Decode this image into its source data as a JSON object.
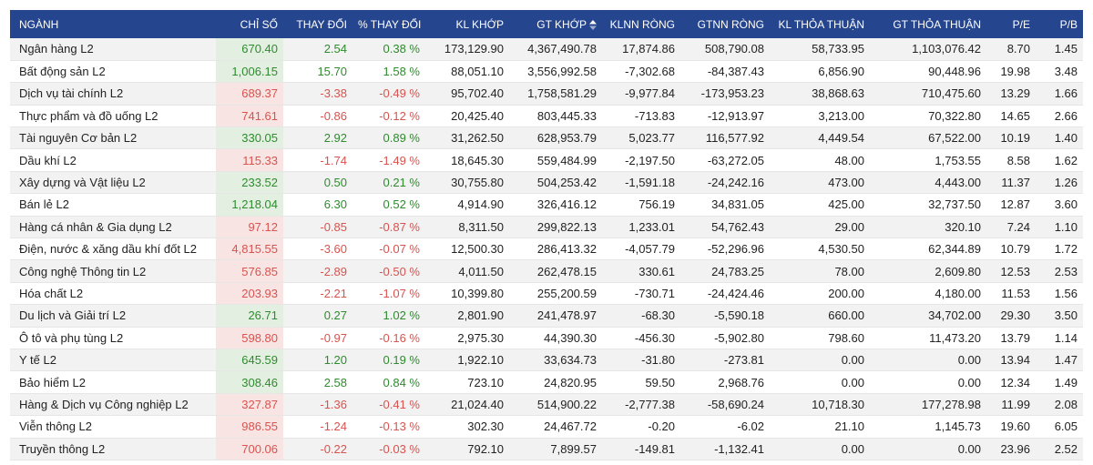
{
  "colors": {
    "header_bg": "#26458f",
    "up": "#2e8b2e",
    "down": "#d9534f",
    "up_bg": "#e3f0e1",
    "down_bg": "#f7e4e3"
  },
  "columns": [
    "NGÀNH",
    "CHỈ SỐ",
    "THAY ĐỔI",
    "% THAY ĐỔI",
    "KL KHỚP",
    "GT KHỚP",
    "KLNN RÒNG",
    "GTNN RÒNG",
    "KL THỎA THUẬN",
    "GT THỎA THUẬN",
    "P/E",
    "P/B"
  ],
  "sorted_column_icon": "sort-updown-icon",
  "rows": [
    {
      "name": "Ngân hàng L2",
      "index": "670.40",
      "change": "2.54",
      "pct": "0.38 %",
      "vol": "173,129.90",
      "val": "4,367,490.78",
      "fvol": "17,874.86",
      "fval": "508,790.08",
      "pvol": "58,733.95",
      "pval": "1,103,076.42",
      "pe": "8.70",
      "pb": "1.45",
      "dir": "up"
    },
    {
      "name": "Bất động sản L2",
      "index": "1,006.15",
      "change": "15.70",
      "pct": "1.58 %",
      "vol": "88,051.10",
      "val": "3,556,992.58",
      "fvol": "-7,302.68",
      "fval": "-84,387.43",
      "pvol": "6,856.90",
      "pval": "90,448.96",
      "pe": "19.98",
      "pb": "3.48",
      "dir": "up"
    },
    {
      "name": "Dịch vụ tài chính L2",
      "index": "689.37",
      "change": "-3.38",
      "pct": "-0.49 %",
      "vol": "95,702.40",
      "val": "1,758,581.29",
      "fvol": "-9,977.84",
      "fval": "-173,953.23",
      "pvol": "38,868.63",
      "pval": "710,475.60",
      "pe": "13.29",
      "pb": "1.66",
      "dir": "down"
    },
    {
      "name": "Thực phẩm và đồ uống L2",
      "index": "741.61",
      "change": "-0.86",
      "pct": "-0.12 %",
      "vol": "20,425.40",
      "val": "803,445.33",
      "fvol": "-713.83",
      "fval": "-12,913.97",
      "pvol": "3,213.00",
      "pval": "70,322.80",
      "pe": "14.65",
      "pb": "2.66",
      "dir": "down"
    },
    {
      "name": "Tài nguyên Cơ bản L2",
      "index": "330.05",
      "change": "2.92",
      "pct": "0.89 %",
      "vol": "31,262.50",
      "val": "628,953.79",
      "fvol": "5,023.77",
      "fval": "116,577.92",
      "pvol": "4,449.54",
      "pval": "67,522.00",
      "pe": "10.19",
      "pb": "1.40",
      "dir": "up"
    },
    {
      "name": "Dầu khí L2",
      "index": "115.33",
      "change": "-1.74",
      "pct": "-1.49 %",
      "vol": "18,645.30",
      "val": "559,484.99",
      "fvol": "-2,197.50",
      "fval": "-63,272.05",
      "pvol": "48.00",
      "pval": "1,753.55",
      "pe": "8.58",
      "pb": "1.62",
      "dir": "down"
    },
    {
      "name": "Xây dựng và Vật liệu L2",
      "index": "233.52",
      "change": "0.50",
      "pct": "0.21 %",
      "vol": "30,755.80",
      "val": "504,253.42",
      "fvol": "-1,591.18",
      "fval": "-24,242.16",
      "pvol": "473.00",
      "pval": "4,443.00",
      "pe": "11.37",
      "pb": "1.26",
      "dir": "up"
    },
    {
      "name": "Bán lẻ L2",
      "index": "1,218.04",
      "change": "6.30",
      "pct": "0.52 %",
      "vol": "4,914.90",
      "val": "326,416.12",
      "fvol": "756.19",
      "fval": "34,831.05",
      "pvol": "425.00",
      "pval": "32,737.50",
      "pe": "12.87",
      "pb": "3.60",
      "dir": "up"
    },
    {
      "name": "Hàng cá nhân & Gia dụng L2",
      "index": "97.12",
      "change": "-0.85",
      "pct": "-0.87 %",
      "vol": "8,311.50",
      "val": "299,822.13",
      "fvol": "1,233.01",
      "fval": "54,762.43",
      "pvol": "29.00",
      "pval": "320.10",
      "pe": "7.24",
      "pb": "1.10",
      "dir": "down"
    },
    {
      "name": "Điện, nước & xăng dầu khí đốt L2",
      "index": "4,815.55",
      "change": "-3.60",
      "pct": "-0.07 %",
      "vol": "12,500.30",
      "val": "286,413.32",
      "fvol": "-4,057.79",
      "fval": "-52,296.96",
      "pvol": "4,530.50",
      "pval": "62,344.89",
      "pe": "10.79",
      "pb": "1.72",
      "dir": "down"
    },
    {
      "name": "Công nghệ Thông tin L2",
      "index": "576.85",
      "change": "-2.89",
      "pct": "-0.50 %",
      "vol": "4,011.50",
      "val": "262,478.15",
      "fvol": "330.61",
      "fval": "24,783.25",
      "pvol": "78.00",
      "pval": "2,609.80",
      "pe": "12.53",
      "pb": "2.53",
      "dir": "down"
    },
    {
      "name": "Hóa chất L2",
      "index": "203.93",
      "change": "-2.21",
      "pct": "-1.07 %",
      "vol": "10,399.80",
      "val": "255,200.59",
      "fvol": "-730.71",
      "fval": "-24,424.46",
      "pvol": "200.00",
      "pval": "4,180.00",
      "pe": "11.53",
      "pb": "1.56",
      "dir": "down"
    },
    {
      "name": "Du lịch và Giải trí L2",
      "index": "26.71",
      "change": "0.27",
      "pct": "1.02 %",
      "vol": "2,801.90",
      "val": "241,478.97",
      "fvol": "-68.30",
      "fval": "-5,590.18",
      "pvol": "660.00",
      "pval": "34,702.00",
      "pe": "29.30",
      "pb": "3.50",
      "dir": "up"
    },
    {
      "name": "Ô tô và phụ tùng L2",
      "index": "598.80",
      "change": "-0.97",
      "pct": "-0.16 %",
      "vol": "2,975.30",
      "val": "44,390.30",
      "fvol": "-456.30",
      "fval": "-5,902.80",
      "pvol": "798.60",
      "pval": "11,473.20",
      "pe": "13.79",
      "pb": "1.14",
      "dir": "down"
    },
    {
      "name": "Y tế L2",
      "index": "645.59",
      "change": "1.20",
      "pct": "0.19 %",
      "vol": "1,922.10",
      "val": "33,634.73",
      "fvol": "-31.80",
      "fval": "-273.81",
      "pvol": "0.00",
      "pval": "0.00",
      "pe": "13.94",
      "pb": "1.47",
      "dir": "up"
    },
    {
      "name": "Bảo hiểm L2",
      "index": "308.46",
      "change": "2.58",
      "pct": "0.84 %",
      "vol": "723.10",
      "val": "24,820.95",
      "fvol": "59.50",
      "fval": "2,968.76",
      "pvol": "0.00",
      "pval": "0.00",
      "pe": "12.34",
      "pb": "1.49",
      "dir": "up"
    },
    {
      "name": "Hàng & Dịch vụ Công nghiệp L2",
      "index": "327.87",
      "change": "-1.36",
      "pct": "-0.41 %",
      "vol": "21,024.40",
      "val": "514,900.22",
      "fvol": "-2,777.38",
      "fval": "-58,690.24",
      "pvol": "10,718.30",
      "pval": "177,278.98",
      "pe": "11.99",
      "pb": "2.08",
      "dir": "down"
    },
    {
      "name": "Viễn thông L2",
      "index": "986.55",
      "change": "-1.24",
      "pct": "-0.13 %",
      "vol": "302.30",
      "val": "24,467.72",
      "fvol": "-0.20",
      "fval": "-6.02",
      "pvol": "21.10",
      "pval": "1,145.73",
      "pe": "19.60",
      "pb": "6.05",
      "dir": "down"
    },
    {
      "name": "Truyền thông L2",
      "index": "700.06",
      "change": "-0.22",
      "pct": "-0.03 %",
      "vol": "792.10",
      "val": "7,899.57",
      "fvol": "-149.81",
      "fval": "-1,132.41",
      "pvol": "0.00",
      "pval": "0.00",
      "pe": "23.96",
      "pb": "2.52",
      "dir": "down"
    }
  ]
}
